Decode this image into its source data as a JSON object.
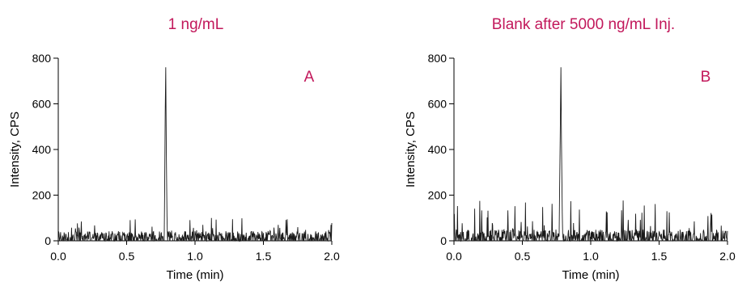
{
  "colors": {
    "accent": "#c2185b",
    "trace": "#1a1a1a",
    "axis": "#000000"
  },
  "chart_data": [
    {
      "type": "line",
      "title": "1 ng/mL",
      "panel_label": "A",
      "xlabel": "Time (min)",
      "ylabel": "Intensity, CPS",
      "xlim": [
        0.0,
        2.0
      ],
      "ylim": [
        0,
        800
      ],
      "xticks": [
        "0.0",
        "0.5",
        "1.0",
        "1.5",
        "2.0"
      ],
      "yticks": [
        "0",
        "200",
        "400",
        "600",
        "800"
      ],
      "grid": false,
      "legend": "none",
      "noise_level": 30,
      "noise_max": 100,
      "peaks": [
        {
          "x": 0.778,
          "y": 230
        },
        {
          "x": 0.782,
          "y": 560
        },
        {
          "x": 0.786,
          "y": 760
        },
        {
          "x": 0.79,
          "y": 400
        },
        {
          "x": 0.795,
          "y": 110
        }
      ]
    },
    {
      "type": "line",
      "title": "Blank after 5000 ng/mL Inj.",
      "panel_label": "B",
      "xlabel": "Time (min)",
      "ylabel": "Intensity, CPS",
      "xlim": [
        0.0,
        2.0
      ],
      "ylim": [
        0,
        800
      ],
      "xticks": [
        "0.0",
        "0.5",
        "1.0",
        "1.5",
        "2.0"
      ],
      "yticks": [
        "0",
        "200",
        "400",
        "600",
        "800"
      ],
      "grid": false,
      "legend": "none",
      "noise_level": 35,
      "noise_max": 180,
      "peaks": [
        {
          "x": 0.772,
          "y": 200
        },
        {
          "x": 0.777,
          "y": 460
        },
        {
          "x": 0.782,
          "y": 760
        },
        {
          "x": 0.786,
          "y": 440
        },
        {
          "x": 0.792,
          "y": 120
        }
      ]
    }
  ]
}
